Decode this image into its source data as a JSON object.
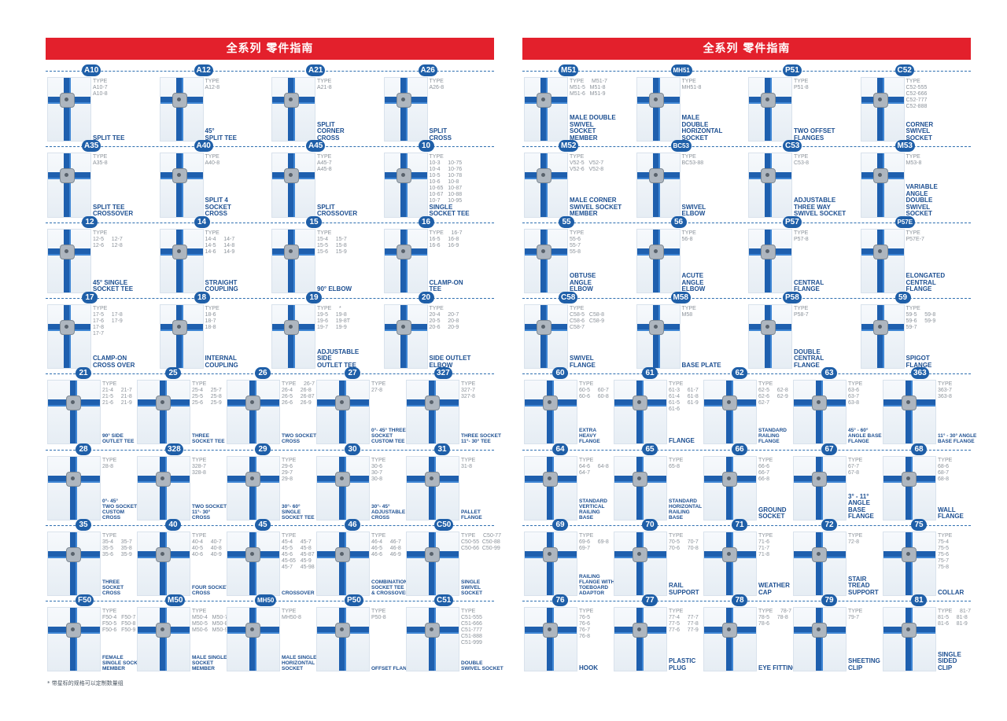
{
  "left": {
    "title": "全系列  零件指南",
    "footnote": "* 带星标的规格可以定制数量组",
    "rows": [
      [
        {
          "id": "A10",
          "type": "TYPE\nA10-7\nA10-8",
          "name": "SPLIT TEE"
        },
        {
          "id": "A12",
          "type": "TYPE\nA12-8",
          "name": "45°\nSPLIT TEE"
        },
        {
          "id": "A21",
          "type": "TYPE\nA21-8",
          "name": "SPLIT\nCORNER\nCROSS"
        },
        {
          "id": "A26",
          "type": "TYPE\nA26-8",
          "name": "SPLIT\nCROSS"
        }
      ],
      [
        {
          "id": "A35",
          "type": "TYPE\nA35-8",
          "name": "SPLIT TEE\nCROSSOVER"
        },
        {
          "id": "A40",
          "type": "TYPE\nA40-8",
          "name": "SPLIT 4\nSOCKET\nCROSS"
        },
        {
          "id": "A45",
          "type": "TYPE\nA45-7\nA45-8",
          "name": "SPLIT\nCROSSOVER"
        },
        {
          "id": "10",
          "type": "TYPE\n10-3     10-75\n10-4     10-76\n10-5     10-78\n10-6     10-8\n10-65   10-87\n10-67   10-88\n10-7     10-95",
          "name": "SINGLE\nSOCKET TEE"
        }
      ],
      [
        {
          "id": "12",
          "type": "TYPE\n12-5     12-7\n12-6     12-8",
          "name": "45° SINGLE\nSOCKET TEE"
        },
        {
          "id": "14",
          "type": "TYPE\n14-4     14-7\n14-5     14-8\n14-6     14-9",
          "name": "STRAIGHT\nCOUPLING"
        },
        {
          "id": "15",
          "type": "TYPE\n15-4     15-7\n15-5     15-8\n15-6     15-9",
          "name": "90° ELBOW"
        },
        {
          "id": "16",
          "type": "TYPE     16-7\n16-5     16-8\n16-6     16-9",
          "name": "CLAMP-ON\nTEE"
        }
      ],
      [
        {
          "id": "17",
          "type": "TYPE\n17-5     17-8\n17-6     17-9\n17-8\n17-7",
          "name": "CLAMP-ON\nCROSS OVER"
        },
        {
          "id": "18",
          "type": "TYPE\n18-6\n18-7\n18-8",
          "name": "INTERNAL\nCOUPLING"
        },
        {
          "id": "19",
          "type": "TYPE     *\n19-5     19-8\n19-6     19-8T\n19-7     19-9",
          "name": "ADJUSTABLE\nSIDE\nOUTLET TEE"
        },
        {
          "id": "20",
          "type": "TYPE\n20-4     20-7\n20-5     20-8\n20-6     20-9",
          "name": "SIDE OUTLET\nELBOW"
        }
      ],
      [
        {
          "id": "21",
          "type": "TYPE\n21-4     21-7\n21-5     21-8\n21-6     21-9",
          "name": "90° SIDE\nOUTLET TEE",
          "small": true
        },
        {
          "id": "25",
          "type": "TYPE\n25-4     25-7\n25-5     25-8\n25-6     25-9",
          "name": "THREE\nSOCKET TEE",
          "small": true
        },
        {
          "id": "26",
          "type": "TYPE     26-7\n26-4     26-8\n26-5     26-87\n26-6     26-9",
          "name": "TWO SOCKET\nCROSS",
          "small": true
        },
        {
          "id": "27",
          "type": "TYPE\n27-8",
          "name": "0°- 45° THREE\nSOCKET\nCUSTOM TEE",
          "small": true
        },
        {
          "id": "327",
          "type": "TYPE\n327-7\n327-8",
          "name": "THREE SOCKET\n11°- 30° TEE",
          "small": true
        }
      ],
      [
        {
          "id": "28",
          "type": "TYPE\n28-8",
          "name": "0°- 45°\nTWO SOCKET\nCUSTOM\nCROSS",
          "small": true
        },
        {
          "id": "328",
          "type": "TYPE\n328-7\n328-8",
          "name": "TWO SOCKET\n11°- 30°\nCROSS",
          "small": true
        },
        {
          "id": "29",
          "type": "TYPE\n29-6\n29-7\n29-8",
          "name": "30°- 60°\nSINGLE\nSOCKET TEE",
          "small": true
        },
        {
          "id": "30",
          "type": "TYPE\n30-6\n30-7\n30-8",
          "name": "30°- 45°\nADJUSTABLE\nCROSS",
          "small": true
        },
        {
          "id": "31",
          "type": "TYPE\n31-8",
          "name": "PALLET\nFLANGE",
          "small": true
        }
      ],
      [
        {
          "id": "35",
          "type": "TYPE\n35-4     35-7\n35-5     35-8\n35-6     35-9",
          "name": "THREE\nSOCKET\nCROSS",
          "small": true
        },
        {
          "id": "40",
          "type": "TYPE\n40-4     40-7\n40-5     40-8\n40-6     40-9",
          "name": "FOUR SOCKET\nCROSS",
          "small": true
        },
        {
          "id": "45",
          "type": "TYPE\n45-4     45-7\n45-5     45-8\n45-6     45-87\n45-65   45-9\n45-7     45-98",
          "name": "CROSSOVER",
          "small": true
        },
        {
          "id": "46",
          "type": "TYPE\n46-4     46-7\n46-5     46-8\n46-6     46-9",
          "name": "COMBINATION\nSOCKET TEE\n& CROSSOVER",
          "small": true
        },
        {
          "id": "C50",
          "type": "TYPE     C50-77\nC50-55  C50-88\nC50-66  C50-99",
          "name": "SINGLE\nSWIVEL\nSOCKET",
          "small": true
        }
      ],
      [
        {
          "id": "F50",
          "type": "TYPE\nF50-4   F50-7\nF50-5   F50-8\nF50-6   F50-9",
          "name": "FEMALE\nSINGLE SOCKET\nMEMBER",
          "small": true
        },
        {
          "id": "M50",
          "type": "TYPE\nM50-4   M50-7\nM50-5   M50-8\nM50-6   M50-9",
          "name": "MALE SINGLE\nSOCKET\nMEMBER",
          "small": true
        },
        {
          "id": "MH50",
          "type": "TYPE\nMH50-8",
          "name": "MALE SINGLE\nHORIZONTAL\nSOCKET",
          "small": true
        },
        {
          "id": "P50",
          "type": "TYPE\nP50-8",
          "name": "OFFSET FLANGE",
          "small": true
        },
        {
          "id": "C51",
          "type": "TYPE\nC51-555\nC51-666\nC51-777\nC51-888\nC51-999",
          "name": "DOUBLE\nSWIVEL SOCKET",
          "small": true
        }
      ]
    ]
  },
  "right": {
    "title": "全系列  零件指南",
    "rows": [
      [
        {
          "id": "M51",
          "type": "TYPE     M51-7\nM51-5   M51-8\nM51-6   M51-9",
          "name": "MALE DOUBLE\nSWIVEL\nSOCKET\nMEMBER"
        },
        {
          "id": "MH51",
          "type": "TYPE\nMH51-8",
          "name": "MALE\nDOUBLE\nHORIZONTAL\nSOCKET"
        },
        {
          "id": "P51",
          "type": "TYPE\nP51-8",
          "name": "TWO OFFSET\nFLANGES"
        },
        {
          "id": "C52",
          "type": "TYPE\nC52-555\nC52-666\nC52-777\nC52-888",
          "name": "CORNER\nSWIVEL\nSOCKET"
        }
      ],
      [
        {
          "id": "M52",
          "type": "TYPE\nV52-5   V52-7\nV52-6   V52-8",
          "name": "MALE CORNER\nSWIVEL SOCKET\nMEMBER"
        },
        {
          "id": "BC53",
          "type": "TYPE\nBC53-88",
          "name": "SWIVEL\nELBOW"
        },
        {
          "id": "C53",
          "type": "TYPE\nC53-8",
          "name": "ADJUSTABLE\nTHREE WAY\nSWIVEL SOCKET"
        },
        {
          "id": "M53",
          "type": "TYPE\nM53-8",
          "name": "VARIABLE\nANGLE\nDOUBLE\nSWIVEL\nSOCKET"
        }
      ],
      [
        {
          "id": "55",
          "type": "TYPE\n55-6\n55-7\n55-8",
          "name": "OBTUSE\nANGLE\nELBOW"
        },
        {
          "id": "56",
          "type": "TYPE\n56-8",
          "name": "ACUTE\nANGLE\nELBOW"
        },
        {
          "id": "P57",
          "type": "TYPE\nP57-8",
          "name": "CENTRAL\nFLANGE"
        },
        {
          "id": "P57E",
          "type": "TYPE\nP57E-7",
          "name": "ELONGATED\nCENTRAL\nFLANGE"
        }
      ],
      [
        {
          "id": "C58",
          "type": "TYPE\nC58-5   C58-8\nC58-6   C58-9\nC58-7",
          "name": "SWIVEL\nFLANGE"
        },
        {
          "id": "M58",
          "type": "TYPE\nM58",
          "name": "BASE PLATE"
        },
        {
          "id": "P58",
          "type": "TYPE\nP58-7",
          "name": "DOUBLE\nCENTRAL\nFLANGE"
        },
        {
          "id": "59",
          "type": "TYPE\n59-5     59-8\n59-6     59-9\n59-7",
          "name": "SPIGOT\nFLANGE"
        }
      ],
      [
        {
          "id": "60",
          "type": "TYPE\n60-5     60-7\n60-6     60-8",
          "name": "EXTRA\nHEAVY\nFLANGE",
          "small": true
        },
        {
          "id": "61",
          "type": "TYPE\n61-3     61-7\n61-4     61-8\n61-5     61-9\n61-6",
          "name": "FLANGE"
        },
        {
          "id": "62",
          "type": "TYPE\n62-5     62-8\n62-6     62-9\n62-7",
          "name": "STANDARD\nRAILING\nFLANGE",
          "small": true
        },
        {
          "id": "63",
          "type": "TYPE\n63-6\n63-7\n63-8",
          "name": "45° - 60°\nANGLE BASE\nFLANGE",
          "small": true
        },
        {
          "id": "363",
          "type": "TYPE\n363-7\n363-8",
          "name": "11° - 30° ANGLE\nBASE FLANGE",
          "small": true
        }
      ],
      [
        {
          "id": "64",
          "type": "TYPE\n64-6     64-8\n64-7",
          "name": "STANDARD\nVERTICAL\nRAILING\nBASE",
          "small": true
        },
        {
          "id": "65",
          "type": "TYPE\n65-8",
          "name": "STANDARD\nHORIZONTAL\nRAILING\nBASE",
          "small": true
        },
        {
          "id": "66",
          "type": "TYPE\n66-6\n66-7\n66-8",
          "name": "GROUND\nSOCKET"
        },
        {
          "id": "67",
          "type": "TYPE\n67-7\n67-8",
          "name": "3° - 11°\nANGLE\nBASE\nFLANGE"
        },
        {
          "id": "68",
          "type": "TYPE\n68-6\n68-7\n68-8",
          "name": "WALL\nFLANGE"
        }
      ],
      [
        {
          "id": "69",
          "type": "TYPE\n69-6     69-8\n69-7",
          "name": "RAILING\nFLANGE WITH\nTOEBOARD\nADAPTOR",
          "small": true
        },
        {
          "id": "70",
          "type": "TYPE\n70-5     70-7\n70-6     70-8",
          "name": "RAIL\nSUPPORT"
        },
        {
          "id": "71",
          "type": "TYPE\n71-6\n71-7\n71-8",
          "name": "WEATHER\nCAP"
        },
        {
          "id": "72",
          "type": "TYPE\n72-8",
          "name": "STAIR\nTREAD\nSUPPORT"
        },
        {
          "id": "75",
          "type": "TYPE\n75-4\n75-5\n75-6\n75-7\n75-8",
          "name": "COLLAR"
        }
      ],
      [
        {
          "id": "76",
          "type": "TYPE\n76-5\n76-6\n76-7\n76-8",
          "name": "HOOK"
        },
        {
          "id": "77",
          "type": "TYPE\n77-4     77-7\n77-5     77-8\n77-6     77-9",
          "name": "PLASTIC\nPLUG"
        },
        {
          "id": "78",
          "type": "TYPE     78-7\n78-5     78-8\n78-6",
          "name": "EYE FITTING"
        },
        {
          "id": "79",
          "type": "TYPE\n79-7",
          "name": "SHEETING\nCLIP"
        },
        {
          "id": "81",
          "type": "TYPE     81-7\n81-5     81-8\n81-6     81-9",
          "name": "SINGLE\nSIDED\nCLIP"
        }
      ]
    ]
  }
}
